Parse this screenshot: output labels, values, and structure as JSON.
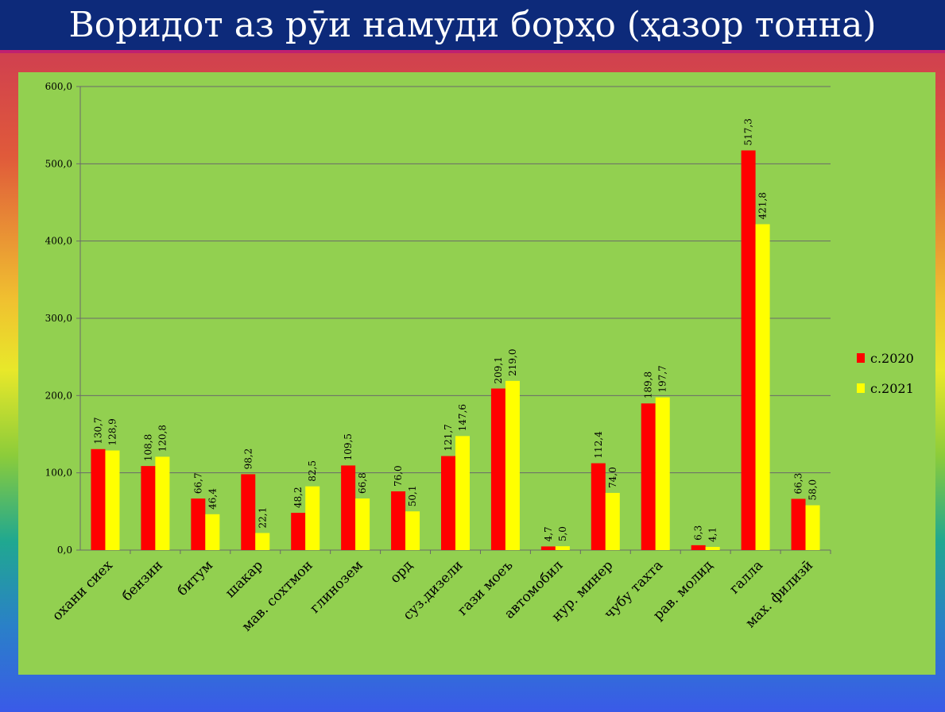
{
  "slide": {
    "title": "Воридот аз рӯи намуди борҳо (ҳазор тонна)"
  },
  "colors": {
    "background_top": "#0d2a7a",
    "panel": "#92d050",
    "series_2020": "#ff0000",
    "series_2021": "#ffff00"
  },
  "chart_data": {
    "type": "bar",
    "title": "",
    "xlabel": "",
    "ylabel": "",
    "ylim": [
      0,
      600
    ],
    "yticks": [
      "0,0",
      "100,0",
      "200,0",
      "300,0",
      "400,0",
      "500,0",
      "600,0"
    ],
    "grid": true,
    "legend_position": "right",
    "categories": [
      "охани сиех",
      "бензин",
      "битум",
      "шакар",
      "мав. сохтмон",
      "глинозем",
      "орд",
      "суз.дизели",
      "гази моеъ",
      "автомобил",
      "нур. минер",
      "чубу тахта",
      "рав. молид",
      "галла",
      "мах. филизӣ"
    ],
    "series": [
      {
        "name": "с.2020",
        "values": [
          130.7,
          108.8,
          66.7,
          98.2,
          48.2,
          109.5,
          76.0,
          121.7,
          209.1,
          4.7,
          112.4,
          189.8,
          6.3,
          517.3,
          66.3
        ],
        "labels": [
          "130,7",
          "108,8",
          "66,7",
          "98,2",
          "48,2",
          "109,5",
          "76,0",
          "121,7",
          "209,1",
          "4,7",
          "112,4",
          "189,8",
          "6,3",
          "517,3",
          "66,3"
        ]
      },
      {
        "name": "с.2021",
        "values": [
          128.9,
          120.8,
          46.4,
          22.1,
          82.5,
          66.8,
          50.1,
          147.6,
          219.0,
          5.0,
          74.0,
          197.7,
          4.1,
          421.8,
          58.0
        ],
        "labels": [
          "128,9",
          "120,8",
          "46,4",
          "22,1",
          "82,5",
          "66,8",
          "50,1",
          "147,6",
          "219,0",
          "5,0",
          "74,0",
          "197,7",
          "4,1",
          "421,8",
          "58,0"
        ]
      }
    ]
  }
}
